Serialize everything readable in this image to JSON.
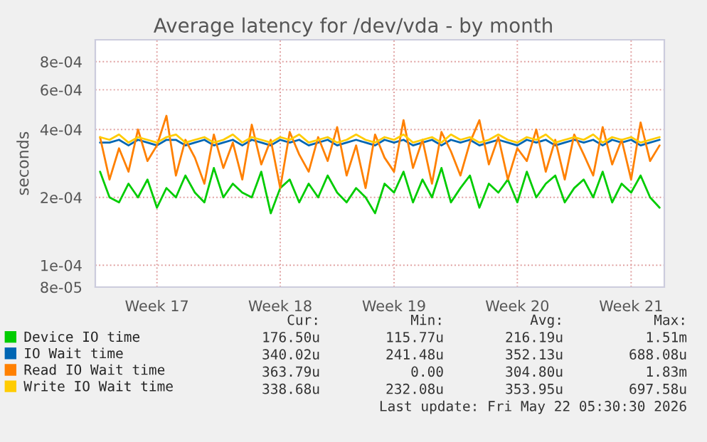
{
  "chart_data": {
    "type": "line",
    "title": "Average latency for /dev/vda - by month",
    "ylabel": "seconds",
    "categories": [
      null,
      null,
      null,
      null,
      null,
      null,
      "Week 17",
      null,
      null,
      null,
      null,
      null,
      null,
      null,
      null,
      null,
      null,
      null,
      null,
      "Week 18",
      null,
      null,
      null,
      null,
      null,
      null,
      null,
      null,
      null,
      null,
      null,
      "Week 19",
      null,
      null,
      null,
      null,
      null,
      null,
      null,
      null,
      null,
      null,
      null,
      null,
      "Week 20",
      null,
      null,
      null,
      null,
      null,
      null,
      null,
      null,
      null,
      null,
      null,
      "Week 21",
      null,
      null,
      null
    ],
    "series": [
      {
        "name": "Device IO time",
        "color": "#00cc00",
        "values": [
          0.00026,
          0.0002,
          0.00019,
          0.00023,
          0.0002,
          0.00024,
          0.00018,
          0.00022,
          0.0002,
          0.00025,
          0.00021,
          0.00019,
          0.00027,
          0.0002,
          0.00023,
          0.00021,
          0.0002,
          0.00026,
          0.00017,
          0.00022,
          0.00024,
          0.00019,
          0.00023,
          0.0002,
          0.00025,
          0.00021,
          0.00019,
          0.00022,
          0.0002,
          0.00017,
          0.00023,
          0.00021,
          0.00026,
          0.00019,
          0.00024,
          0.0002,
          0.00027,
          0.00019,
          0.00022,
          0.00025,
          0.00018,
          0.00023,
          0.00021,
          0.00024,
          0.00019,
          0.00026,
          0.0002,
          0.00023,
          0.00025,
          0.00019,
          0.00022,
          0.00024,
          0.0002,
          0.00026,
          0.00019,
          0.00023,
          0.00021,
          0.00025,
          0.0002,
          0.00018
        ]
      },
      {
        "name": "IO Wait time",
        "color": "#0066b3",
        "values": [
          0.00035,
          0.00035,
          0.00036,
          0.00034,
          0.00036,
          0.00035,
          0.00034,
          0.00036,
          0.00036,
          0.00034,
          0.00035,
          0.00036,
          0.00034,
          0.00035,
          0.00036,
          0.00034,
          0.00036,
          0.00035,
          0.00034,
          0.00036,
          0.00035,
          0.00036,
          0.00034,
          0.00035,
          0.00036,
          0.00034,
          0.00035,
          0.00036,
          0.00035,
          0.00034,
          0.00036,
          0.00035,
          0.00036,
          0.00034,
          0.00035,
          0.00036,
          0.00034,
          0.00036,
          0.00035,
          0.00036,
          0.00034,
          0.00035,
          0.00036,
          0.00035,
          0.00034,
          0.00036,
          0.00035,
          0.00036,
          0.00034,
          0.00035,
          0.00036,
          0.00035,
          0.00036,
          0.00034,
          0.00036,
          0.00035,
          0.00036,
          0.00034,
          0.00035,
          0.00036
        ]
      },
      {
        "name": "Read IO Wait time",
        "color": "#ff8000",
        "values": [
          0.00037,
          0.00024,
          0.00033,
          0.00026,
          0.0004,
          0.00029,
          0.00034,
          0.00046,
          0.00025,
          0.00036,
          0.0003,
          0.00023,
          0.00038,
          0.00027,
          0.00035,
          0.00024,
          0.00042,
          0.00028,
          0.00036,
          0.00022,
          0.00039,
          0.00031,
          0.00026,
          0.00037,
          0.00029,
          0.00041,
          0.00025,
          0.00034,
          0.00022,
          0.00038,
          0.0003,
          0.00026,
          0.00044,
          0.00027,
          0.00036,
          0.00023,
          0.00039,
          0.00032,
          0.00025,
          0.00035,
          0.00044,
          0.00028,
          0.00037,
          0.00024,
          0.00033,
          0.00029,
          0.0004,
          0.00026,
          0.00036,
          0.00024,
          0.00038,
          0.00031,
          0.00025,
          0.00041,
          0.00028,
          0.00036,
          0.00024,
          0.00043,
          0.00029,
          0.00034
        ]
      },
      {
        "name": "Write IO Wait time",
        "color": "#ffcc00",
        "values": [
          0.00037,
          0.00036,
          0.00038,
          0.00035,
          0.00037,
          0.00036,
          0.00035,
          0.00037,
          0.00038,
          0.00035,
          0.00036,
          0.00037,
          0.00035,
          0.00036,
          0.00038,
          0.00035,
          0.00037,
          0.00036,
          0.00035,
          0.00037,
          0.00036,
          0.00038,
          0.00035,
          0.00036,
          0.00037,
          0.00035,
          0.00036,
          0.00038,
          0.00036,
          0.00035,
          0.00037,
          0.00036,
          0.00038,
          0.00035,
          0.00036,
          0.00037,
          0.00035,
          0.00038,
          0.00036,
          0.00037,
          0.00035,
          0.00036,
          0.00038,
          0.00036,
          0.00035,
          0.00037,
          0.00036,
          0.00038,
          0.00035,
          0.00036,
          0.00037,
          0.00036,
          0.00038,
          0.00035,
          0.00037,
          0.00036,
          0.00037,
          0.00035,
          0.00036,
          0.00037
        ]
      }
    ],
    "log": true,
    "ylim": [
      8e-05,
      0.001
    ],
    "yticks": [
      {
        "value": 8e-05,
        "label": "8e-05"
      },
      {
        "value": 0.0001,
        "label": "1e-04"
      },
      {
        "value": 0.0002,
        "label": "2e-04"
      },
      {
        "value": 0.0004,
        "label": "4e-04"
      },
      {
        "value": 0.0006,
        "label": "6e-04"
      },
      {
        "value": 0.0008,
        "label": "8e-04"
      }
    ],
    "grid": true,
    "legend": "bottom",
    "marker": "none",
    "line_style": "solid",
    "annotations": [
      "Cur:",
      "Min:",
      "Avg:",
      "Max:",
      "176.50u",
      "115.77u",
      "216.19u",
      "1.51m",
      "340.02u",
      "241.48u",
      "352.13u",
      "688.08u",
      "363.79u",
      "0.00",
      "304.80u",
      "1.83m",
      "338.68u",
      "232.08u",
      "353.95u",
      "697.58u",
      "Last update: Fri May 22 05:30:30 2026"
    ]
  }
}
